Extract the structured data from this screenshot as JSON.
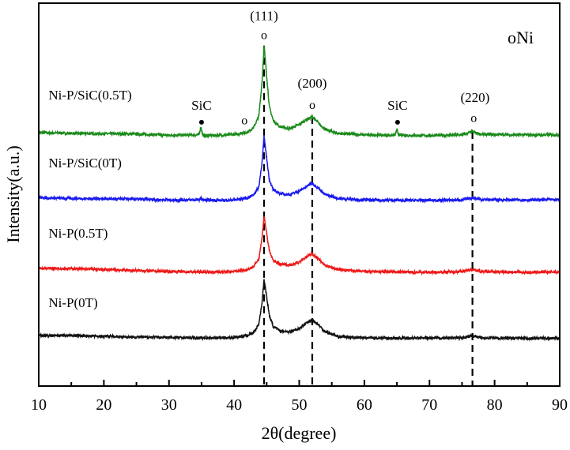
{
  "chart_data": {
    "type": "line",
    "title": "",
    "xlabel": "2θ(degree)",
    "ylabel": "Intensity(a.u.)",
    "xlim": [
      10,
      90
    ],
    "ylim": [
      0,
      100
    ],
    "xticks": [
      10,
      20,
      30,
      40,
      50,
      60,
      70,
      80,
      90
    ],
    "xtick_labels": [
      "10",
      "20",
      "30",
      "40",
      "50",
      "60",
      "70",
      "80",
      "90"
    ],
    "x_minor_step": 5,
    "y_ticks_shown": false,
    "grid": false,
    "legend_text": "oNi",
    "legend_placement": "top-right",
    "x": [
      10,
      15,
      20,
      25,
      30,
      34.6,
      34.9,
      35.2,
      38,
      40,
      42,
      43,
      43.8,
      44.3,
      44.6,
      44.9,
      45.4,
      46,
      47,
      48.5,
      50,
      51,
      52,
      53,
      54,
      56,
      60,
      64.7,
      65,
      65.3,
      70,
      75,
      76.6,
      78,
      85,
      90
    ],
    "series": [
      {
        "name": "Ni-P/SiC(0.5T)",
        "color": "#1a8a1a",
        "values": [
          66.2,
          66.0,
          65.9,
          65.8,
          65.5,
          65.6,
          67.8,
          65.4,
          65.5,
          65.7,
          66.3,
          67.5,
          70.5,
          79.7,
          88.9,
          83.1,
          73.0,
          69.4,
          67.8,
          67.2,
          68.3,
          69.5,
          70.3,
          68.6,
          67.0,
          66.0,
          65.6,
          65.5,
          66.9,
          65.5,
          65.4,
          65.6,
          66.4,
          65.7,
          65.6,
          65.6
        ]
      },
      {
        "name": "Ni-P/SiC(0T)",
        "color": "#1a1aee",
        "values": [
          49.2,
          49.0,
          48.9,
          48.8,
          48.6,
          48.6,
          49.1,
          48.6,
          48.5,
          48.6,
          49.1,
          50.0,
          52.0,
          58.6,
          65.2,
          61.0,
          54.0,
          51.2,
          50.3,
          50.0,
          50.9,
          52.0,
          53.0,
          51.6,
          50.0,
          49.0,
          48.6,
          48.5,
          48.6,
          48.5,
          48.5,
          48.6,
          49.2,
          48.7,
          48.6,
          48.7
        ]
      },
      {
        "name": "Ni-P(0.5T)",
        "color": "#ee1a1a",
        "values": [
          30.8,
          30.7,
          30.4,
          30.2,
          29.9,
          29.8,
          29.8,
          29.8,
          29.8,
          29.9,
          30.4,
          31.2,
          33.3,
          38.8,
          44.5,
          41.0,
          35.3,
          32.8,
          31.8,
          31.6,
          32.4,
          33.6,
          34.6,
          33.1,
          31.5,
          30.4,
          29.9,
          29.8,
          29.8,
          29.8,
          29.7,
          29.9,
          30.5,
          29.9,
          29.7,
          29.8
        ]
      },
      {
        "name": "Ni-P(0T)",
        "color": "#111111",
        "values": [
          13.2,
          13.2,
          13.0,
          12.8,
          12.7,
          12.6,
          12.6,
          12.6,
          12.6,
          12.7,
          13.2,
          14.0,
          16.2,
          22.0,
          28.0,
          24.5,
          18.5,
          15.6,
          14.4,
          14.2,
          15.0,
          16.4,
          17.3,
          15.9,
          14.2,
          12.9,
          12.6,
          12.5,
          12.5,
          12.5,
          12.5,
          12.6,
          13.1,
          12.6,
          12.5,
          12.5
        ]
      }
    ],
    "series_labels": [
      {
        "text": "Ni-P/SiC(0.5T)",
        "x": 11.5,
        "y": 74.8
      },
      {
        "text": "Ni-P/SiC(0T)",
        "x": 11.5,
        "y": 57.1
      },
      {
        "text": "Ni-P(0.5T)",
        "x": 11.5,
        "y": 38.8
      },
      {
        "text": "Ni-P(0T)",
        "x": 11.5,
        "y": 20.6
      }
    ],
    "reference_lines": [
      {
        "x": 44.6,
        "y_top": 88.9
      },
      {
        "x": 52.0,
        "y_top": 70.3
      },
      {
        "x": 76.6,
        "y_top": 66.4
      }
    ],
    "annotations": [
      {
        "text": "(111)",
        "x": 44.6,
        "y": 95.6
      },
      {
        "text": "o",
        "x": 44.6,
        "y": 90.6
      },
      {
        "text": "(200)",
        "x": 52.0,
        "y": 77.9
      },
      {
        "text": "o",
        "x": 52.0,
        "y": 72.4
      },
      {
        "text": "(220)",
        "x": 77.0,
        "y": 74.2
      },
      {
        "text": "o",
        "x": 76.8,
        "y": 69.0
      },
      {
        "text": "SiC",
        "x": 35.0,
        "y": 72.2
      },
      {
        "text": "SiC",
        "x": 65.1,
        "y": 72.2
      },
      {
        "text": "o",
        "x": 41.6,
        "y": 68.4
      }
    ],
    "markers": [
      {
        "symbol": "filled-dot",
        "x": 35.0,
        "y": 68.9
      },
      {
        "symbol": "filled-dot",
        "x": 65.1,
        "y": 68.9
      }
    ]
  }
}
